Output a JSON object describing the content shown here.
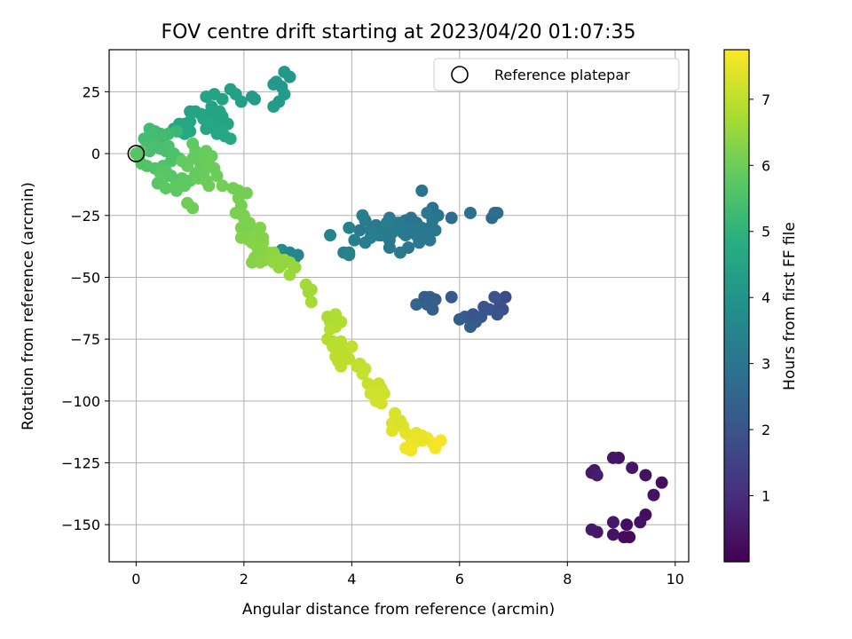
{
  "chart_data": {
    "type": "scatter",
    "title": "FOV centre drift starting at 2023/04/20 01:07:35",
    "xlabel": "Angular distance from reference (arcmin)",
    "ylabel": "Rotation from reference (arcmin)",
    "xlim": [
      -0.5,
      10.25
    ],
    "ylim": [
      -165,
      42
    ],
    "xticks": [
      0,
      2,
      4,
      6,
      8,
      10
    ],
    "yticks": [
      25,
      0,
      -25,
      -50,
      -75,
      -100,
      -125,
      -150
    ],
    "xtick_labels": [
      "0",
      "2",
      "4",
      "6",
      "8",
      "10"
    ],
    "ytick_labels": [
      "25",
      "0",
      "−25",
      "−50",
      "−75",
      "−100",
      "−125",
      "−150"
    ],
    "grid": true,
    "legend": {
      "position": "top-right",
      "label": "Reference platepar"
    },
    "reference_point": {
      "x": 0,
      "y": 0
    },
    "colorbar": {
      "label": "Hours from first FF file",
      "range": [
        0.0,
        7.75
      ],
      "ticks": [
        1,
        2,
        3,
        4,
        5,
        6,
        7
      ],
      "tick_labels": [
        "1",
        "2",
        "3",
        "4",
        "5",
        "6",
        "7"
      ],
      "colormap": "viridis"
    },
    "points": [
      [
        9.75,
        -133,
        0.3
      ],
      [
        9.6,
        -138,
        0.4
      ],
      [
        9.45,
        -130,
        0.35
      ],
      [
        9.2,
        -127,
        0.45
      ],
      [
        9.45,
        -146,
        0.3
      ],
      [
        9.35,
        -149,
        0.35
      ],
      [
        9.1,
        -150,
        0.3
      ],
      [
        9.15,
        -155,
        0.2
      ],
      [
        9.05,
        -155,
        0.25
      ],
      [
        8.95,
        -123,
        0.4
      ],
      [
        8.85,
        -123,
        0.45
      ],
      [
        8.85,
        -149,
        0.5
      ],
      [
        8.85,
        -154,
        0.4
      ],
      [
        8.5,
        -128,
        0.5
      ],
      [
        8.45,
        -129,
        0.55
      ],
      [
        8.55,
        -130,
        0.6
      ],
      [
        8.45,
        -152,
        0.55
      ],
      [
        8.55,
        -153,
        0.5
      ],
      [
        6.85,
        -58,
        1.8
      ],
      [
        6.75,
        -61,
        1.9
      ],
      [
        6.65,
        -58,
        2.0
      ],
      [
        6.8,
        -63,
        1.9
      ],
      [
        6.7,
        -65,
        2.0
      ],
      [
        6.55,
        -63,
        2.1
      ],
      [
        6.45,
        -62,
        2.0
      ],
      [
        6.4,
        -66,
        2.1
      ],
      [
        6.3,
        -68,
        2.2
      ],
      [
        6.2,
        -70,
        2.3
      ],
      [
        6.1,
        -66,
        2.2
      ],
      [
        6.0,
        -67,
        2.3
      ],
      [
        6.25,
        -65,
        2.1
      ],
      [
        5.85,
        -58,
        2.2
      ],
      [
        5.5,
        -63,
        2.4
      ],
      [
        5.45,
        -58,
        2.4
      ],
      [
        5.35,
        -58,
        2.3
      ],
      [
        5.55,
        -59,
        2.2
      ],
      [
        5.2,
        -61,
        2.5
      ],
      [
        5.4,
        -61,
        2.4
      ],
      [
        5.5,
        -60,
        2.35
      ],
      [
        6.7,
        -24,
        2.8
      ],
      [
        6.6,
        -26,
        2.7
      ],
      [
        6.65,
        -24,
        2.8
      ],
      [
        6.2,
        -24,
        2.9
      ],
      [
        5.85,
        -26,
        2.8
      ],
      [
        5.6,
        -25,
        3.0
      ],
      [
        5.5,
        -22,
        2.95
      ],
      [
        5.3,
        -15,
        3.0
      ],
      [
        5.4,
        -24,
        3.1
      ],
      [
        5.5,
        -27,
        3.05
      ],
      [
        5.3,
        -30,
        3.1
      ],
      [
        5.2,
        -28,
        3.0
      ],
      [
        5.1,
        -30,
        3.05
      ],
      [
        5.0,
        -27,
        3.1
      ],
      [
        4.9,
        -28,
        3.15
      ],
      [
        4.8,
        -30,
        3.2
      ],
      [
        4.7,
        -26,
        3.1
      ],
      [
        4.6,
        -31,
        3.2
      ],
      [
        4.55,
        -33,
        3.25
      ],
      [
        4.45,
        -29,
        3.2
      ],
      [
        4.35,
        -31,
        3.3
      ],
      [
        4.25,
        -27,
        3.25
      ],
      [
        4.15,
        -31,
        3.2
      ],
      [
        4.2,
        -25,
        3.3
      ],
      [
        4.05,
        -35,
        3.35
      ],
      [
        3.95,
        -30,
        3.4
      ],
      [
        3.85,
        -40,
        3.3
      ],
      [
        3.95,
        -40,
        3.4
      ],
      [
        3.95,
        -41,
        3.45
      ],
      [
        3.6,
        -33,
        3.5
      ],
      [
        4.25,
        -36,
        3.3
      ],
      [
        4.7,
        -35,
        3.2
      ],
      [
        4.7,
        -38,
        3.1
      ],
      [
        4.9,
        -40,
        3.2
      ],
      [
        5.05,
        -38,
        3.1
      ],
      [
        5.25,
        -36,
        3.2
      ],
      [
        5.45,
        -35,
        3.1
      ],
      [
        5.55,
        -31,
        3.05
      ],
      [
        5.0,
        -33,
        3.2
      ],
      [
        5.15,
        -29,
        3.1
      ],
      [
        4.95,
        -32,
        3.2
      ],
      [
        4.85,
        -28,
        3.2
      ],
      [
        4.65,
        -28,
        3.3
      ],
      [
        4.5,
        -33,
        3.25
      ],
      [
        5.25,
        -32,
        3.15
      ],
      [
        5.35,
        -34,
        3.1
      ],
      [
        5.45,
        -30,
        3.05
      ],
      [
        5.2,
        -33,
        3.1
      ],
      [
        5.1,
        -26,
        3.0
      ],
      [
        4.35,
        -34,
        3.3
      ],
      [
        4.75,
        -32,
        3.2
      ],
      [
        3.0,
        -41,
        3.5
      ],
      [
        2.85,
        -40,
        3.6
      ],
      [
        2.95,
        -42,
        3.55
      ],
      [
        2.7,
        -39,
        3.7
      ],
      [
        2.6,
        -41,
        3.65
      ],
      [
        2.8,
        -42,
        3.6
      ],
      [
        2.75,
        33,
        4.1
      ],
      [
        2.85,
        31,
        4.15
      ],
      [
        2.6,
        29,
        4.2
      ],
      [
        2.7,
        27,
        4.1
      ],
      [
        2.55,
        28,
        4.2
      ],
      [
        2.75,
        24,
        4.25
      ],
      [
        2.65,
        21,
        4.2
      ],
      [
        2.55,
        19,
        4.3
      ],
      [
        2.2,
        22,
        4.3
      ],
      [
        2.15,
        23,
        4.25
      ],
      [
        1.95,
        21,
        4.35
      ],
      [
        1.85,
        24,
        4.4
      ],
      [
        1.75,
        26,
        4.4
      ],
      [
        1.6,
        22,
        4.45
      ],
      [
        1.45,
        24,
        4.5
      ],
      [
        1.3,
        23,
        4.5
      ],
      [
        1.4,
        19,
        4.45
      ],
      [
        1.55,
        17,
        4.5
      ],
      [
        1.5,
        14,
        4.5
      ],
      [
        1.35,
        16,
        4.55
      ],
      [
        1.25,
        14,
        4.6
      ],
      [
        1.2,
        16,
        4.55
      ],
      [
        1.1,
        17,
        4.5
      ],
      [
        1.0,
        13,
        4.6
      ],
      [
        1.0,
        17,
        4.55
      ],
      [
        0.9,
        12,
        4.6
      ],
      [
        0.8,
        12,
        4.65
      ],
      [
        0.7,
        10,
        4.7
      ],
      [
        0.8,
        9,
        4.65
      ],
      [
        0.9,
        8,
        4.7
      ],
      [
        1.0,
        9,
        4.65
      ],
      [
        1.3,
        10,
        4.6
      ],
      [
        1.4,
        11,
        4.55
      ],
      [
        1.55,
        12,
        4.6
      ],
      [
        1.7,
        12,
        4.55
      ],
      [
        1.6,
        10,
        4.6
      ],
      [
        1.5,
        8,
        4.6
      ],
      [
        1.65,
        7,
        4.65
      ],
      [
        1.75,
        6,
        4.7
      ],
      [
        1.55,
        15,
        4.55
      ],
      [
        1.35,
        13,
        4.6
      ],
      [
        1.6,
        15,
        4.5
      ],
      [
        0.75,
        9,
        5.2
      ],
      [
        0.6,
        8,
        5.3
      ],
      [
        0.5,
        6,
        5.3
      ],
      [
        0.45,
        8,
        5.35
      ],
      [
        0.35,
        9,
        5.3
      ],
      [
        0.25,
        10,
        5.35
      ],
      [
        0.3,
        7,
        5.4
      ],
      [
        0.15,
        6,
        5.4
      ],
      [
        0.2,
        3,
        5.45
      ],
      [
        0.25,
        1,
        5.45
      ],
      [
        0.35,
        3,
        5.5
      ],
      [
        0.45,
        2,
        5.45
      ],
      [
        0.55,
        1,
        5.5
      ],
      [
        0.6,
        3,
        5.5
      ],
      [
        0.7,
        0,
        5.55
      ],
      [
        0.8,
        -2,
        5.6
      ],
      [
        0.65,
        -3,
        5.55
      ],
      [
        0.5,
        -5,
        5.6
      ],
      [
        0.35,
        -6,
        5.6
      ],
      [
        0.2,
        -5,
        5.65
      ],
      [
        0.1,
        -4,
        5.65
      ],
      [
        0.05,
        -1,
        5.7
      ],
      [
        0.1,
        1,
        5.7
      ],
      [
        0.0,
        0,
        5.7
      ],
      [
        0.45,
        -8,
        5.75
      ],
      [
        0.55,
        -7,
        5.75
      ],
      [
        0.5,
        -10,
        5.8
      ],
      [
        0.4,
        -12,
        5.75
      ],
      [
        0.55,
        -14,
        5.8
      ],
      [
        0.75,
        -12,
        5.8
      ],
      [
        0.85,
        -10,
        5.8
      ],
      [
        0.9,
        -13,
        5.85
      ],
      [
        0.75,
        -15,
        5.85
      ],
      [
        1.0,
        -11,
        5.85
      ],
      [
        1.1,
        -8,
        5.9
      ],
      [
        1.2,
        -5,
        5.9
      ],
      [
        1.05,
        -2,
        5.9
      ],
      [
        0.95,
        -5,
        5.95
      ],
      [
        0.85,
        -3,
        5.9
      ],
      [
        1.15,
        -10,
        5.95
      ],
      [
        1.25,
        -8,
        5.95
      ],
      [
        1.3,
        -11,
        6.0
      ],
      [
        1.35,
        -13,
        6.0
      ],
      [
        1.2,
        -2,
        5.95
      ],
      [
        1.1,
        1,
        5.9
      ],
      [
        1.3,
        1,
        5.95
      ],
      [
        1.4,
        -1,
        5.95
      ],
      [
        1.35,
        -4,
        6.0
      ],
      [
        1.45,
        -6,
        6.0
      ],
      [
        1.5,
        -9,
        6.0
      ],
      [
        1.05,
        4,
        5.85
      ],
      [
        0.95,
        -20,
        6.05
      ],
      [
        1.05,
        -22,
        6.05
      ],
      [
        0.65,
        -9,
        5.75
      ],
      [
        1.6,
        -13,
        6.1
      ],
      [
        1.8,
        -14,
        6.1
      ],
      [
        1.9,
        -15,
        6.1
      ],
      [
        1.9,
        -18,
        6.15
      ],
      [
        1.95,
        -21,
        6.15
      ],
      [
        1.85,
        -24,
        6.2
      ],
      [
        2.0,
        -26,
        6.2
      ],
      [
        2.1,
        -28,
        6.25
      ],
      [
        1.95,
        -30,
        6.2
      ],
      [
        2.05,
        -32,
        6.25
      ],
      [
        1.95,
        -34,
        6.3
      ],
      [
        2.1,
        -35,
        6.25
      ],
      [
        2.2,
        -33,
        6.3
      ],
      [
        2.15,
        -36,
        6.35
      ],
      [
        2.3,
        -30,
        6.3
      ],
      [
        2.25,
        -38,
        6.35
      ],
      [
        2.35,
        -36,
        6.4
      ],
      [
        2.2,
        -42,
        6.35
      ],
      [
        2.3,
        -44,
        6.4
      ],
      [
        2.15,
        -44,
        6.35
      ],
      [
        2.4,
        -43,
        6.4
      ],
      [
        2.55,
        -40,
        6.45
      ],
      [
        2.6,
        -42,
        6.45
      ],
      [
        2.55,
        -44,
        6.5
      ],
      [
        2.7,
        -45,
        6.5
      ],
      [
        2.75,
        -43,
        6.55
      ],
      [
        2.85,
        -44,
        6.5
      ],
      [
        2.95,
        -46,
        6.55
      ],
      [
        2.85,
        -49,
        6.6
      ],
      [
        2.65,
        -46,
        6.5
      ],
      [
        2.45,
        -40,
        6.45
      ],
      [
        2.3,
        -40,
        6.35
      ],
      [
        2.0,
        -25,
        6.2
      ],
      [
        2.05,
        -16,
        6.1
      ],
      [
        2.1,
        -29,
        6.2
      ],
      [
        2.35,
        -34,
        6.3
      ],
      [
        3.15,
        -53,
        6.7
      ],
      [
        3.25,
        -55,
        6.7
      ],
      [
        3.25,
        -60,
        6.75
      ],
      [
        3.2,
        -56,
        6.7
      ],
      [
        3.55,
        -66,
        6.8
      ],
      [
        3.6,
        -68,
        6.8
      ],
      [
        3.7,
        -65,
        6.85
      ],
      [
        3.8,
        -68,
        6.85
      ],
      [
        3.7,
        -70,
        6.85
      ],
      [
        3.6,
        -71,
        6.9
      ],
      [
        3.55,
        -75,
        6.9
      ],
      [
        3.65,
        -76,
        6.9
      ],
      [
        3.8,
        -76,
        6.95
      ],
      [
        3.85,
        -79,
        6.95
      ],
      [
        3.75,
        -80,
        6.95
      ],
      [
        3.65,
        -78,
        6.95
      ],
      [
        3.7,
        -82,
        7.0
      ],
      [
        3.75,
        -84,
        7.0
      ],
      [
        3.8,
        -86,
        7.0
      ],
      [
        3.95,
        -83,
        7.0
      ],
      [
        3.9,
        -81,
        7.0
      ],
      [
        4.0,
        -78,
        7.05
      ],
      [
        4.15,
        -85,
        7.05
      ],
      [
        4.1,
        -86,
        7.05
      ],
      [
        4.25,
        -87,
        7.1
      ],
      [
        4.2,
        -89,
        7.1
      ],
      [
        4.3,
        -93,
        7.1
      ],
      [
        4.4,
        -94,
        7.15
      ],
      [
        4.5,
        -93,
        7.15
      ],
      [
        4.55,
        -95,
        7.15
      ],
      [
        4.5,
        -97,
        7.2
      ],
      [
        4.6,
        -97,
        7.2
      ],
      [
        4.35,
        -97,
        7.2
      ],
      [
        4.45,
        -100,
        7.25
      ],
      [
        4.55,
        -101,
        7.25
      ],
      [
        4.45,
        -96,
        7.2
      ],
      [
        4.8,
        -105,
        7.3
      ],
      [
        4.75,
        -109,
        7.35
      ],
      [
        4.85,
        -110,
        7.35
      ],
      [
        4.75,
        -112,
        7.4
      ],
      [
        4.95,
        -110,
        7.4
      ],
      [
        5.0,
        -113,
        7.45
      ],
      [
        5.1,
        -115,
        7.45
      ],
      [
        5.2,
        -113,
        7.5
      ],
      [
        5.3,
        -114,
        7.5
      ],
      [
        5.15,
        -117,
        7.55
      ],
      [
        5.0,
        -119,
        7.55
      ],
      [
        5.1,
        -120,
        7.6
      ],
      [
        5.4,
        -115,
        7.55
      ],
      [
        5.5,
        -117,
        7.6
      ],
      [
        5.55,
        -119,
        7.65
      ],
      [
        5.65,
        -116,
        7.65
      ],
      [
        4.9,
        -108,
        7.3
      ],
      [
        5.3,
        -116,
        7.5
      ]
    ]
  }
}
